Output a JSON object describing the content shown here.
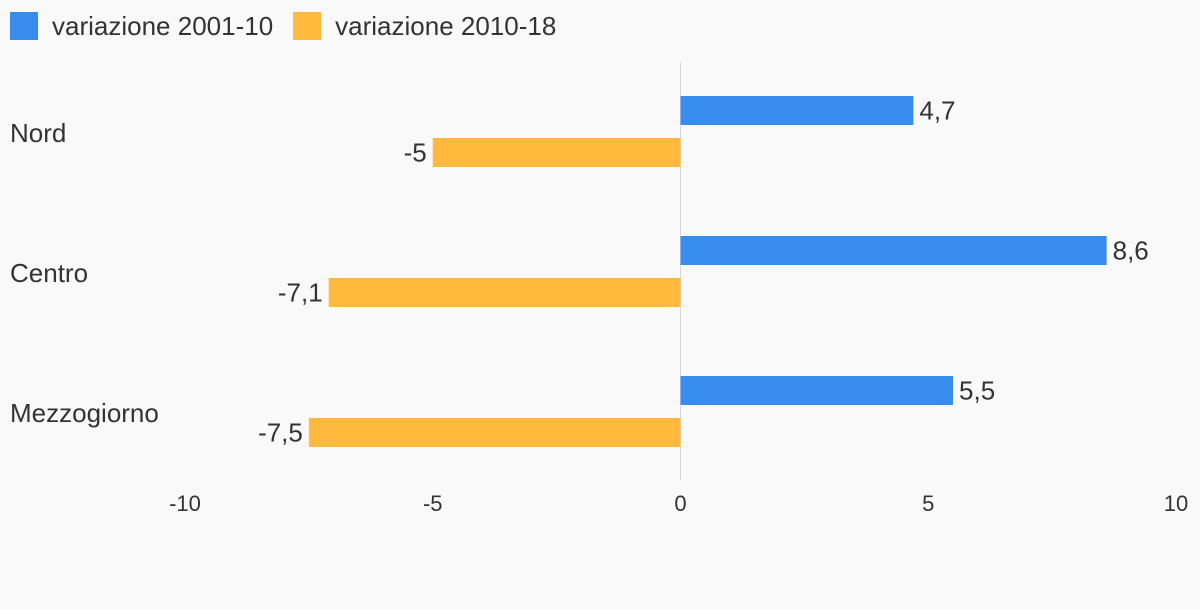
{
  "chart_data": {
    "type": "bar",
    "orientation": "horizontal",
    "categories": [
      "Nord",
      "Centro",
      "Mezzogiorno"
    ],
    "series": [
      {
        "name": "variazione 2001-10",
        "color": "#368ded",
        "values": [
          4.7,
          8.6,
          5.5
        ],
        "value_labels": [
          "4,7",
          "8,6",
          "5,5"
        ]
      },
      {
        "name": "variazione 2010-18",
        "color": "#ffb93c",
        "values": [
          -5,
          -7.1,
          -7.5
        ],
        "value_labels": [
          "-5",
          "-7,1",
          "-7,5"
        ]
      }
    ],
    "xlim": [
      -10,
      10
    ],
    "xticks": [
      -10,
      -5,
      0,
      5,
      10
    ],
    "xtick_labels": [
      "-10",
      "-5",
      "0",
      "5",
      "10"
    ],
    "legend_position": "top-left",
    "grid": false
  }
}
